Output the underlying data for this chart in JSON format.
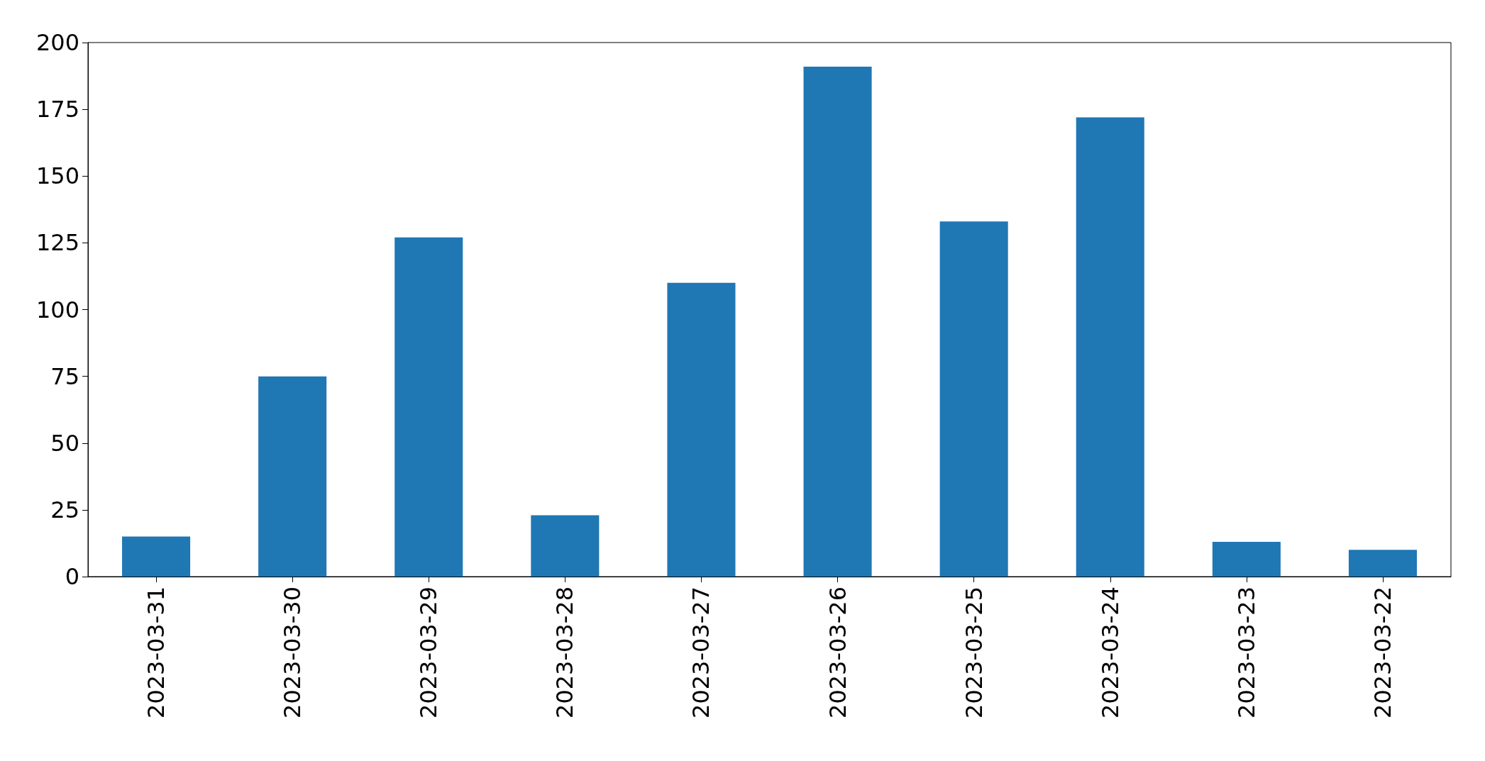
{
  "chart_data": {
    "type": "bar",
    "categories": [
      "2023-03-31",
      "2023-03-30",
      "2023-03-29",
      "2023-03-28",
      "2023-03-27",
      "2023-03-26",
      "2023-03-25",
      "2023-03-24",
      "2023-03-23",
      "2023-03-22"
    ],
    "values": [
      15,
      75,
      127,
      23,
      110,
      191,
      133,
      172,
      13,
      10
    ],
    "color": "#1f77b4",
    "ylim": [
      0,
      200
    ],
    "yticks": [
      0,
      25,
      50,
      75,
      100,
      125,
      150,
      175,
      200
    ],
    "grid": false
  }
}
